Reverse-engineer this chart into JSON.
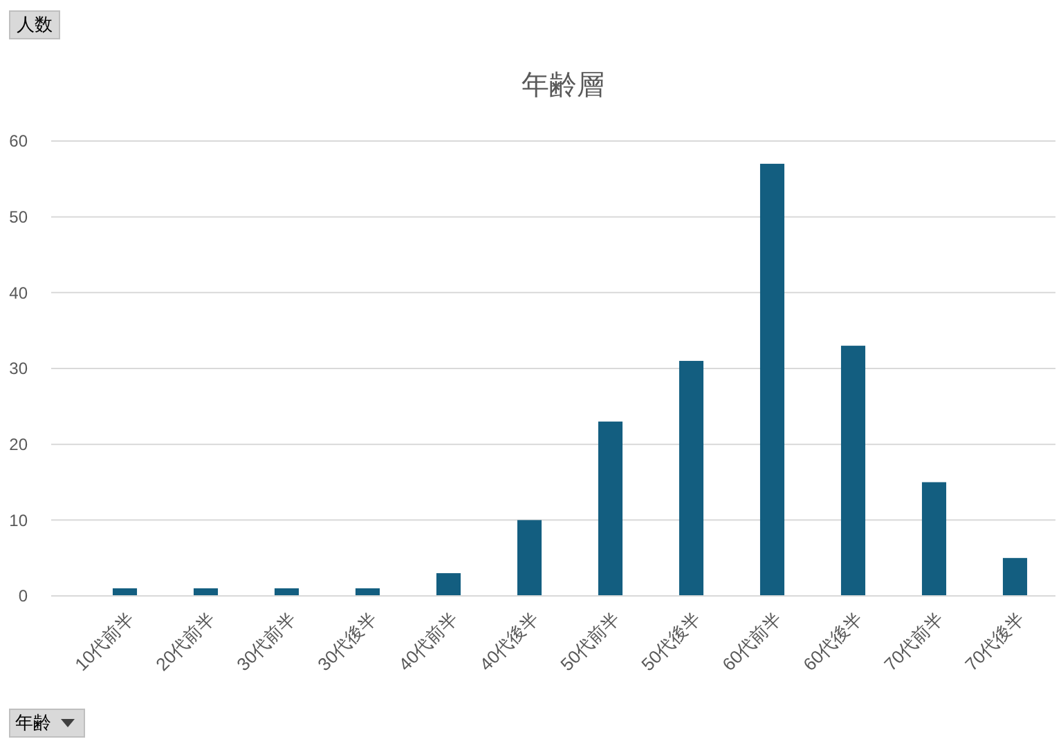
{
  "chart_data": {
    "type": "bar",
    "title": "年齢層",
    "xlabel": "年齢",
    "annotations": [
      "人数"
    ],
    "categories": [
      "10代前半",
      "20代前半",
      "30代前半",
      "30代後半",
      "40代前半",
      "40代後半",
      "50代前半",
      "50代後半",
      "60代前半",
      "60代後半",
      "70代前半",
      "70代後半"
    ],
    "values": [
      1,
      1,
      1,
      1,
      3,
      10,
      23,
      31,
      57,
      33,
      15,
      5
    ],
    "color": "#135e80",
    "ylim": [
      0,
      60
    ],
    "yticks": [
      0,
      10,
      20,
      30,
      40,
      50,
      60
    ],
    "grid": true
  }
}
